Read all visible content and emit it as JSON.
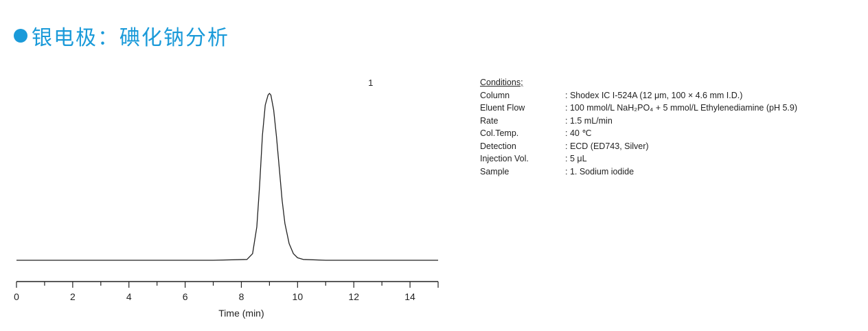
{
  "title": "银电极：碘化钠分析",
  "colors": {
    "accent": "#1a9ad9",
    "trace": "#222222",
    "axis": "#222222",
    "text": "#222222"
  },
  "chart_data": {
    "type": "line",
    "title": "",
    "xlabel": "Time (min)",
    "ylabel": "",
    "xlim": [
      0,
      15
    ],
    "ylim": [
      0,
      1.05
    ],
    "xticks": [
      0,
      2,
      4,
      6,
      8,
      10,
      12,
      14
    ],
    "minor_step": 1,
    "grid": false,
    "y_axis_shown": false,
    "series": [
      {
        "x": [
          0,
          4,
          7,
          8.2,
          8.4,
          8.55,
          8.65,
          8.75,
          8.85,
          8.95,
          9.0,
          9.05,
          9.15,
          9.25,
          9.35,
          9.45,
          9.55,
          9.7,
          9.85,
          10.0,
          10.2,
          11,
          13,
          15
        ],
        "y": [
          0,
          0,
          0,
          0.005,
          0.04,
          0.2,
          0.45,
          0.75,
          0.93,
          0.99,
          1.0,
          0.99,
          0.9,
          0.74,
          0.55,
          0.36,
          0.22,
          0.1,
          0.04,
          0.015,
          0.005,
          0,
          0,
          0
        ]
      }
    ],
    "annotations": [
      {
        "text": "1",
        "x": 12.6,
        "y": 1.05
      }
    ]
  },
  "conditions": {
    "heading": "Conditions;",
    "rows": [
      {
        "label": "Column",
        "value": ": Shodex IC I-524A (12 μm, 100 × 4.6 mm I.D.)"
      },
      {
        "label": "Eluent  Flow",
        "value": ": 100 mmol/L NaH₂PO₄ + 5 mmol/L Ethylenediamine (pH 5.9)"
      },
      {
        "label": "Rate",
        "value": ": 1.5 mL/min"
      },
      {
        "label": "Col.Temp.",
        "value": ": 40 ℃"
      },
      {
        "label": "Detection",
        "value": ": ECD (ED743, Silver)"
      },
      {
        "label": "Injection Vol.",
        "value": ": 5 μL"
      },
      {
        "label": "Sample",
        "value": ": 1. Sodium iodide"
      }
    ]
  }
}
